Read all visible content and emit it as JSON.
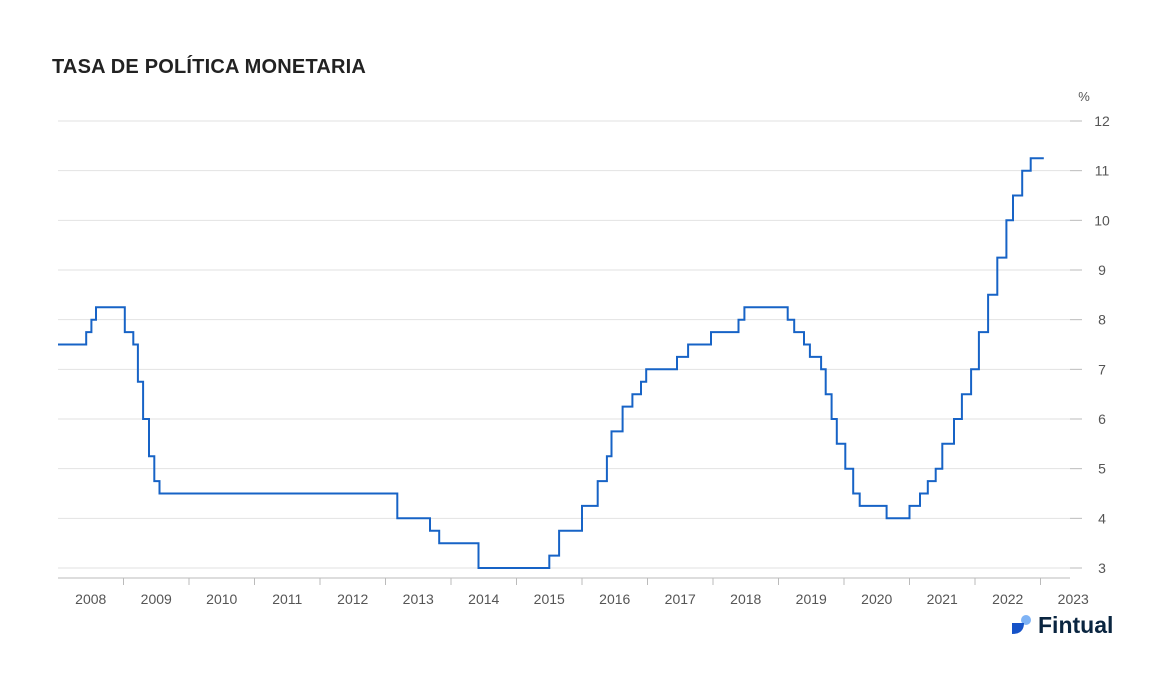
{
  "title": "TASA DE POLÍTICA MONETARIA",
  "brand": {
    "name": "Fintual",
    "logo_icon": "fintual-logo-icon"
  },
  "colors": {
    "line": "#1763c6",
    "grid": "#e2e2e2",
    "axis": "#bbbbbb",
    "text": "#555555",
    "title": "#222222"
  },
  "chart_data": {
    "type": "line",
    "step": true,
    "title": "TASA DE POLÍTICA MONETARIA",
    "ylabel": "%",
    "xlabel": "",
    "x_axis": "year",
    "xlim": [
      2008.0,
      2023.4
    ],
    "ylim": [
      3,
      12
    ],
    "y_ticks": [
      3,
      4,
      5,
      6,
      7,
      8,
      9,
      10,
      11,
      12
    ],
    "x_ticks": [
      "2008",
      "2009",
      "2010",
      "2011",
      "2012",
      "2013",
      "2014",
      "2015",
      "2016",
      "2017",
      "2018",
      "2019",
      "2020",
      "2021",
      "2022",
      "2023"
    ],
    "grid": true,
    "legend": "none",
    "series": [
      {
        "values": [
          [
            2008.0,
            7.5
          ],
          [
            2008.43,
            7.75
          ],
          [
            2008.51,
            8.0
          ],
          [
            2008.58,
            8.25
          ],
          [
            2009.02,
            7.75
          ],
          [
            2009.15,
            7.5
          ],
          [
            2009.22,
            6.75
          ],
          [
            2009.3,
            6.0
          ],
          [
            2009.39,
            5.25
          ],
          [
            2009.47,
            4.75
          ],
          [
            2009.55,
            4.5
          ],
          [
            2013.18,
            4.0
          ],
          [
            2013.68,
            3.75
          ],
          [
            2013.82,
            3.5
          ],
          [
            2014.42,
            3.0
          ],
          [
            2015.5,
            3.25
          ],
          [
            2015.65,
            3.75
          ],
          [
            2016.0,
            4.25
          ],
          [
            2016.24,
            4.75
          ],
          [
            2016.38,
            5.25
          ],
          [
            2016.45,
            5.75
          ],
          [
            2016.62,
            6.25
          ],
          [
            2016.77,
            6.5
          ],
          [
            2016.9,
            6.75
          ],
          [
            2016.98,
            7.0
          ],
          [
            2017.45,
            7.25
          ],
          [
            2017.62,
            7.5
          ],
          [
            2017.97,
            7.75
          ],
          [
            2018.39,
            8.0
          ],
          [
            2018.48,
            8.25
          ],
          [
            2019.14,
            8.0
          ],
          [
            2019.24,
            7.75
          ],
          [
            2019.39,
            7.5
          ],
          [
            2019.48,
            7.25
          ],
          [
            2019.65,
            7.0
          ],
          [
            2019.72,
            6.5
          ],
          [
            2019.81,
            6.0
          ],
          [
            2019.89,
            5.5
          ],
          [
            2020.02,
            5.0
          ],
          [
            2020.14,
            4.5
          ],
          [
            2020.24,
            4.25
          ],
          [
            2020.65,
            4.0
          ],
          [
            2021.0,
            4.25
          ],
          [
            2021.16,
            4.5
          ],
          [
            2021.28,
            4.75
          ],
          [
            2021.4,
            5.0
          ],
          [
            2021.5,
            5.5
          ],
          [
            2021.68,
            6.0
          ],
          [
            2021.8,
            6.5
          ],
          [
            2021.94,
            7.0
          ],
          [
            2022.06,
            7.75
          ],
          [
            2022.2,
            8.5
          ],
          [
            2022.34,
            9.25
          ],
          [
            2022.48,
            10.0
          ],
          [
            2022.58,
            10.5
          ],
          [
            2022.72,
            11.0
          ],
          [
            2022.85,
            11.25
          ],
          [
            2023.05,
            11.25
          ]
        ]
      }
    ]
  }
}
